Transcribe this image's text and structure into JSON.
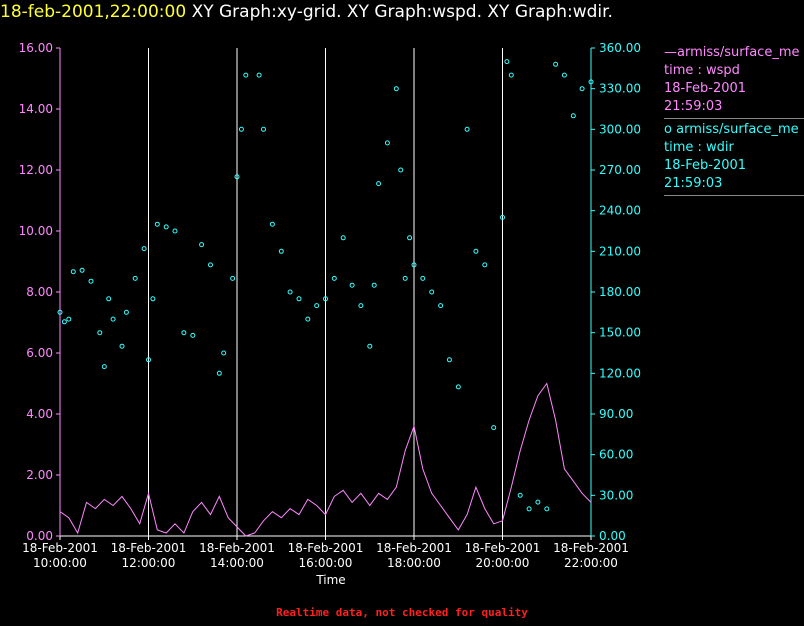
{
  "header": {
    "date": "18-feb-2001,22:00:00",
    "graphs": "XY Graph:xy-grid.  XY Graph:wspd.  XY Graph:wdir."
  },
  "footer": "Realtime data, not checked for quality",
  "colors": {
    "wspd": "#ff88ff",
    "wdir": "#33ffff",
    "grid": "#ffffff",
    "background": "#000000"
  },
  "legend": [
    {
      "marker": "—",
      "name": "armiss/surface_me",
      "var": "time : wspd",
      "date": "18-Feb-2001",
      "time": "21:59:03"
    },
    {
      "marker": "o",
      "name": "armiss/surface_me",
      "var": "time : wdir",
      "date": "18-Feb-2001",
      "time": "21:59:03"
    }
  ],
  "chart_data": {
    "type": "line",
    "xlabel": "Time",
    "x_ticks": [
      {
        "date": "18-Feb-2001",
        "time": "10:00:00",
        "hour": 10
      },
      {
        "date": "18-Feb-2001",
        "time": "12:00:00",
        "hour": 12
      },
      {
        "date": "18-Feb-2001",
        "time": "14:00:00",
        "hour": 14
      },
      {
        "date": "18-Feb-2001",
        "time": "16:00:00",
        "hour": 16
      },
      {
        "date": "18-Feb-2001",
        "time": "18:00:00",
        "hour": 18
      },
      {
        "date": "18-Feb-2001",
        "time": "20:00:00",
        "hour": 20
      },
      {
        "date": "18-Feb-2001",
        "time": "22:00:00",
        "hour": 22
      }
    ],
    "xlim": [
      10,
      22
    ],
    "y_left": {
      "lim": [
        0,
        16
      ],
      "ticks": [
        "0.00",
        "2.00",
        "4.00",
        "6.00",
        "8.00",
        "10.00",
        "12.00",
        "14.00",
        "16.00"
      ]
    },
    "y_right": {
      "lim": [
        0,
        360
      ],
      "ticks": [
        "0.00",
        "30.00",
        "60.00",
        "90.00",
        "120.00",
        "150.00",
        "180.00",
        "210.00",
        "240.00",
        "270.00",
        "300.00",
        "330.00",
        "360.00"
      ]
    },
    "grid": "vertical",
    "series": [
      {
        "axis": "left",
        "style": "line",
        "points": [
          [
            10.0,
            0.8
          ],
          [
            10.2,
            0.6
          ],
          [
            10.4,
            0.1
          ],
          [
            10.6,
            1.1
          ],
          [
            10.8,
            0.9
          ],
          [
            11.0,
            1.2
          ],
          [
            11.2,
            1.0
          ],
          [
            11.4,
            1.3
          ],
          [
            11.6,
            0.9
          ],
          [
            11.8,
            0.4
          ],
          [
            12.0,
            1.4
          ],
          [
            12.2,
            0.2
          ],
          [
            12.4,
            0.1
          ],
          [
            12.6,
            0.4
          ],
          [
            12.8,
            0.1
          ],
          [
            13.0,
            0.8
          ],
          [
            13.2,
            1.1
          ],
          [
            13.4,
            0.7
          ],
          [
            13.6,
            1.3
          ],
          [
            13.8,
            0.6
          ],
          [
            14.0,
            0.3
          ],
          [
            14.2,
            0.0
          ],
          [
            14.4,
            0.1
          ],
          [
            14.6,
            0.5
          ],
          [
            14.8,
            0.8
          ],
          [
            15.0,
            0.6
          ],
          [
            15.2,
            0.9
          ],
          [
            15.4,
            0.7
          ],
          [
            15.6,
            1.2
          ],
          [
            15.8,
            1.0
          ],
          [
            16.0,
            0.7
          ],
          [
            16.2,
            1.3
          ],
          [
            16.4,
            1.5
          ],
          [
            16.6,
            1.1
          ],
          [
            16.8,
            1.4
          ],
          [
            17.0,
            1.0
          ],
          [
            17.2,
            1.4
          ],
          [
            17.4,
            1.2
          ],
          [
            17.6,
            1.6
          ],
          [
            17.8,
            2.8
          ],
          [
            18.0,
            3.6
          ],
          [
            18.2,
            2.2
          ],
          [
            18.4,
            1.4
          ],
          [
            18.6,
            1.0
          ],
          [
            18.8,
            0.6
          ],
          [
            19.0,
            0.2
          ],
          [
            19.2,
            0.7
          ],
          [
            19.4,
            1.6
          ],
          [
            19.6,
            0.9
          ],
          [
            19.8,
            0.4
          ],
          [
            20.0,
            0.5
          ],
          [
            20.2,
            1.6
          ],
          [
            20.4,
            2.8
          ],
          [
            20.6,
            3.8
          ],
          [
            20.8,
            4.6
          ],
          [
            21.0,
            5.0
          ],
          [
            21.2,
            3.8
          ],
          [
            21.4,
            2.2
          ],
          [
            21.6,
            1.8
          ],
          [
            21.8,
            1.4
          ],
          [
            22.0,
            1.1
          ]
        ]
      },
      {
        "axis": "right",
        "style": "markers",
        "points": [
          [
            10.0,
            165
          ],
          [
            10.1,
            158
          ],
          [
            10.2,
            160
          ],
          [
            10.3,
            195
          ],
          [
            10.5,
            196
          ],
          [
            10.7,
            188
          ],
          [
            10.9,
            150
          ],
          [
            11.0,
            125
          ],
          [
            11.1,
            175
          ],
          [
            11.2,
            160
          ],
          [
            11.4,
            140
          ],
          [
            11.5,
            165
          ],
          [
            11.7,
            190
          ],
          [
            11.9,
            212
          ],
          [
            12.0,
            130
          ],
          [
            12.1,
            175
          ],
          [
            12.2,
            230
          ],
          [
            12.4,
            228
          ],
          [
            12.6,
            225
          ],
          [
            12.8,
            150
          ],
          [
            13.0,
            148
          ],
          [
            13.2,
            215
          ],
          [
            13.4,
            200
          ],
          [
            13.6,
            120
          ],
          [
            13.7,
            135
          ],
          [
            13.9,
            190
          ],
          [
            14.0,
            265
          ],
          [
            14.1,
            300
          ],
          [
            14.2,
            340
          ],
          [
            14.5,
            340
          ],
          [
            14.6,
            300
          ],
          [
            14.8,
            230
          ],
          [
            15.0,
            210
          ],
          [
            15.2,
            180
          ],
          [
            15.4,
            175
          ],
          [
            15.6,
            160
          ],
          [
            15.8,
            170
          ],
          [
            16.0,
            175
          ],
          [
            16.2,
            190
          ],
          [
            16.4,
            220
          ],
          [
            16.6,
            185
          ],
          [
            16.8,
            170
          ],
          [
            17.0,
            140
          ],
          [
            17.1,
            185
          ],
          [
            17.2,
            260
          ],
          [
            17.4,
            290
          ],
          [
            17.6,
            330
          ],
          [
            17.7,
            270
          ],
          [
            17.8,
            190
          ],
          [
            17.9,
            220
          ],
          [
            18.0,
            200
          ],
          [
            18.2,
            190
          ],
          [
            18.4,
            180
          ],
          [
            18.6,
            170
          ],
          [
            18.8,
            130
          ],
          [
            19.0,
            110
          ],
          [
            19.2,
            300
          ],
          [
            19.4,
            210
          ],
          [
            19.6,
            200
          ],
          [
            19.8,
            80
          ],
          [
            20.0,
            235
          ],
          [
            20.1,
            350
          ],
          [
            20.2,
            340
          ],
          [
            20.4,
            30
          ],
          [
            20.6,
            20
          ],
          [
            20.8,
            25
          ],
          [
            21.0,
            20
          ],
          [
            21.2,
            348
          ],
          [
            21.4,
            340
          ],
          [
            21.6,
            310
          ],
          [
            21.8,
            330
          ],
          [
            22.0,
            335
          ]
        ]
      }
    ]
  }
}
